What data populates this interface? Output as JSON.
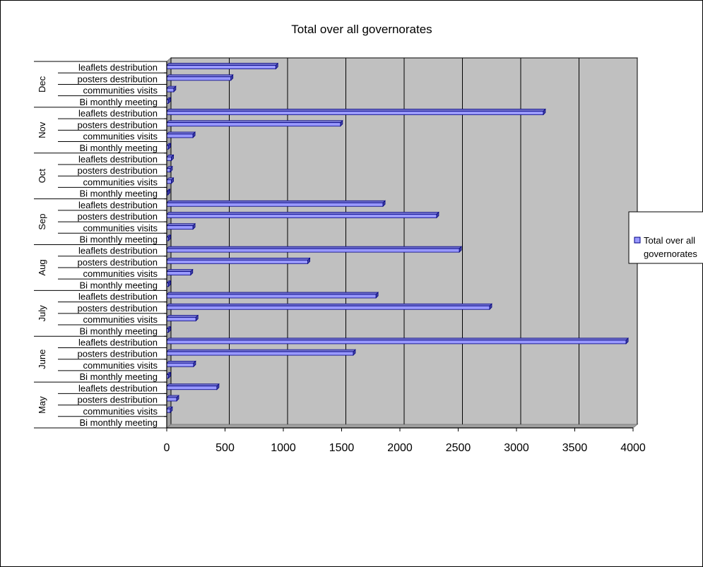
{
  "chart_data": {
    "type": "bar",
    "orientation": "horizontal",
    "title": "Total over all governorates",
    "groups": [
      {
        "name": "Dec",
        "categories": [
          "leaflets destribution",
          "posters destribution",
          "communities visits",
          "Bi monthly meeting"
        ],
        "values": [
          935,
          550,
          60,
          15
        ]
      },
      {
        "name": "Nov",
        "categories": [
          "leaflets destribution",
          "posters destribution",
          "communities visits",
          "Bi monthly meeting"
        ],
        "values": [
          3230,
          1490,
          225,
          15
        ]
      },
      {
        "name": "Oct",
        "categories": [
          "leaflets destribution",
          "posters destribution",
          "communities visits",
          "Bi monthly meeting"
        ],
        "values": [
          40,
          30,
          40,
          10
        ]
      },
      {
        "name": "Sep",
        "categories": [
          "leaflets destribution",
          "posters destribution",
          "communities visits",
          "Bi monthly meeting"
        ],
        "values": [
          1855,
          2315,
          225,
          15
        ]
      },
      {
        "name": "Aug",
        "categories": [
          "leaflets destribution",
          "posters destribution",
          "communities visits",
          "Bi monthly meeting"
        ],
        "values": [
          2510,
          1210,
          205,
          15
        ]
      },
      {
        "name": "July",
        "categories": [
          "leaflets destribution",
          "posters destribution",
          "communities visits",
          "Bi monthly meeting"
        ],
        "values": [
          1795,
          2770,
          250,
          15
        ]
      },
      {
        "name": "June",
        "categories": [
          "leaflets destribution",
          "posters destribution",
          "communities visits",
          "Bi monthly meeting"
        ],
        "values": [
          3940,
          1600,
          230,
          15
        ]
      },
      {
        "name": "May",
        "categories": [
          "leaflets destribution",
          "posters destribution",
          "communities visits",
          "Bi monthly meeting"
        ],
        "values": [
          430,
          85,
          30,
          0
        ]
      }
    ],
    "series": [
      {
        "name": "Total over all governorates"
      }
    ],
    "xlim": [
      0,
      4000
    ],
    "xticks": [
      0,
      500,
      1000,
      1500,
      2000,
      2500,
      3000,
      3500,
      4000
    ],
    "grid": true,
    "legend": "right",
    "colors": {
      "bar": "#9999ff",
      "bar_edge": "#000080",
      "plot_bg": "#c0c0c0",
      "wall": "#a0a0a0",
      "grid": "#000000"
    }
  }
}
